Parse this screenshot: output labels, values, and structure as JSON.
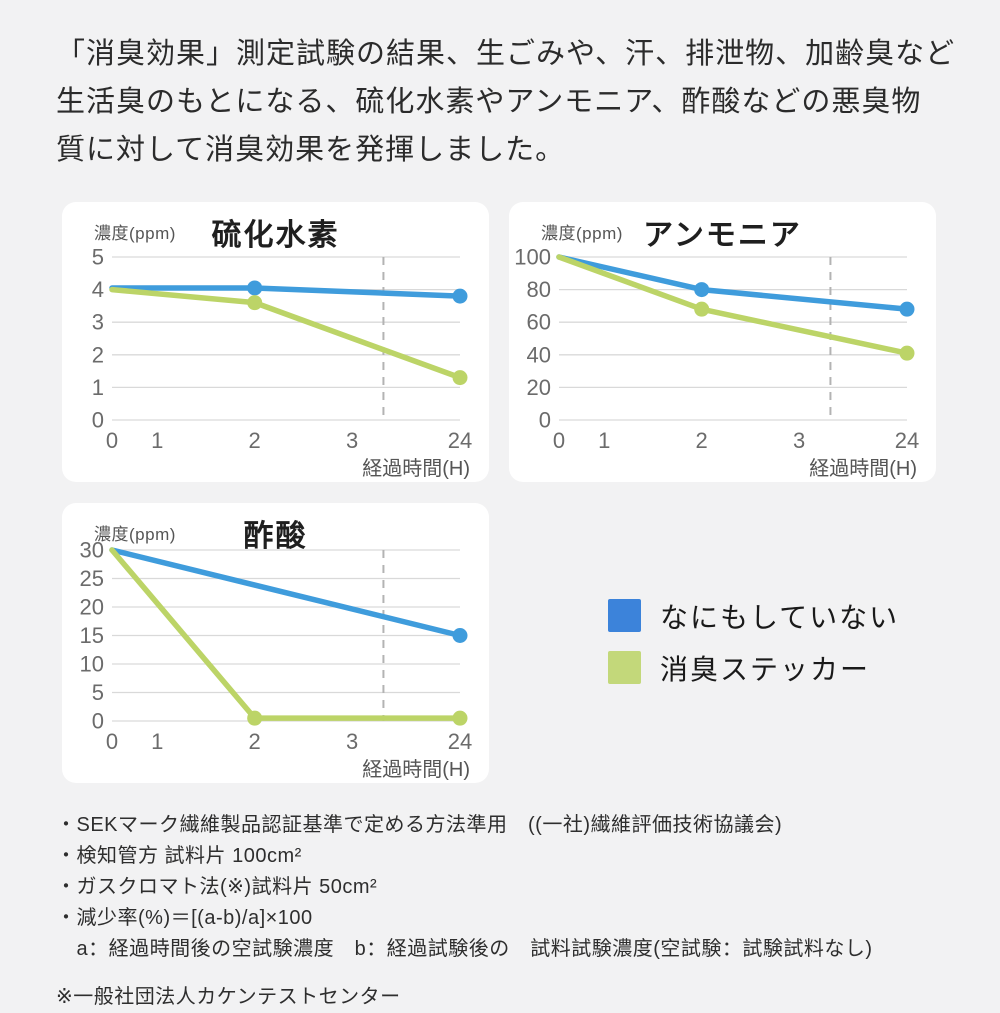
{
  "header": {
    "text": "「消臭効果」測定試験の結果、生ごみや、汗、排泄物、加齢臭など\n生活臭のもとになる、硫化水素やアンモニア、酢酸などの悪臭物\n質に対して消臭効果を発揮しました。"
  },
  "colors": {
    "blue": "#3f9cdc",
    "green": "#bcd467",
    "legend_blue": "#3c83da",
    "legend_green": "#c3d87a",
    "grid": "#d9d9d9",
    "dashed": "#b3b3b3",
    "tick": "#6b6b6b",
    "axis_label": "#555555"
  },
  "legend": {
    "items": [
      {
        "label": "なにもしていない",
        "color": "legend_blue"
      },
      {
        "label": "消臭ステッカー",
        "color": "legend_green"
      }
    ]
  },
  "chart_data": [
    {
      "type": "line",
      "title": "硫化水素",
      "ylabel": "濃度(ppm)",
      "xlabel": "経過時間(H)",
      "ylim": [
        0,
        5
      ],
      "yticks": [
        5,
        4,
        3,
        2,
        1,
        0
      ],
      "xticks": [
        "0",
        "1",
        "2",
        "3",
        "24"
      ],
      "axis_break_between": [
        "3",
        "24"
      ],
      "grid": true,
      "series": [
        {
          "name": "なにもしていない",
          "color": "blue",
          "points": [
            {
              "h": 0,
              "v": 4.05
            },
            {
              "h": 2,
              "v": 4.05,
              "marker": true
            },
            {
              "h": 24,
              "v": 3.8,
              "marker": true
            }
          ]
        },
        {
          "name": "消臭ステッカー",
          "color": "green",
          "points": [
            {
              "h": 0,
              "v": 4.0
            },
            {
              "h": 2,
              "v": 3.6,
              "marker": true
            },
            {
              "h": 24,
              "v": 1.3,
              "marker": true
            }
          ]
        }
      ]
    },
    {
      "type": "line",
      "title": "アンモニア",
      "ylabel": "濃度(ppm)",
      "xlabel": "経過時間(H)",
      "ylim": [
        0,
        100
      ],
      "yticks": [
        100,
        80,
        60,
        40,
        20,
        0
      ],
      "xticks": [
        "0",
        "1",
        "2",
        "3",
        "24"
      ],
      "axis_break_between": [
        "3",
        "24"
      ],
      "grid": true,
      "series": [
        {
          "name": "なにもしていない",
          "color": "blue",
          "points": [
            {
              "h": 0,
              "v": 100
            },
            {
              "h": 2,
              "v": 80,
              "marker": true
            },
            {
              "h": 24,
              "v": 68,
              "marker": true
            }
          ]
        },
        {
          "name": "消臭ステッカー",
          "color": "green",
          "points": [
            {
              "h": 0,
              "v": 100
            },
            {
              "h": 2,
              "v": 68,
              "marker": true
            },
            {
              "h": 24,
              "v": 41,
              "marker": true
            }
          ]
        }
      ]
    },
    {
      "type": "line",
      "title": "酢酸",
      "ylabel": "濃度(ppm)",
      "xlabel": "経過時間(H)",
      "ylim": [
        0,
        30
      ],
      "yticks": [
        30,
        25,
        20,
        15,
        10,
        5,
        0
      ],
      "xticks": [
        "0",
        "1",
        "2",
        "3",
        "24"
      ],
      "axis_break_between": [
        "3",
        "24"
      ],
      "grid": true,
      "series": [
        {
          "name": "なにもしていない",
          "color": "blue",
          "points": [
            {
              "h": 0,
              "v": 30
            },
            {
              "h": 24,
              "v": 15,
              "marker": true
            }
          ]
        },
        {
          "name": "消臭ステッカー",
          "color": "green",
          "points": [
            {
              "h": 0,
              "v": 30
            },
            {
              "h": 2,
              "v": 0.5,
              "marker": true
            },
            {
              "h": 24,
              "v": 0.5,
              "marker": true
            }
          ]
        }
      ]
    }
  ],
  "notes": {
    "bullets": [
      "・SEKマーク繊維製品認証基準で定める方法準用　((一社)繊維評価技術協議会)",
      "・検知管方 試料片 100cm²",
      "・ガスクロマト法(※)試料片 50cm²",
      "・減少率(%)＝[(a-b)/a]×100",
      "　a：経過時間後の空試験濃度　b：経過試験後の　試料試験濃度(空試験：試験試料なし)"
    ],
    "source": "※一般社団法人カケンテストセンター"
  }
}
